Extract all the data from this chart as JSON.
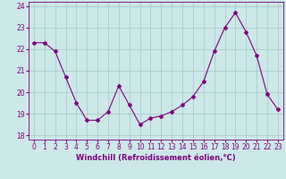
{
  "x": [
    0,
    1,
    2,
    3,
    4,
    5,
    6,
    7,
    8,
    9,
    10,
    11,
    12,
    13,
    14,
    15,
    16,
    17,
    18,
    19,
    20,
    21,
    22,
    23
  ],
  "y": [
    22.3,
    22.3,
    21.9,
    20.7,
    19.5,
    18.7,
    18.7,
    19.1,
    20.3,
    19.4,
    18.5,
    18.8,
    18.9,
    19.1,
    19.4,
    19.8,
    20.5,
    21.9,
    23.0,
    23.7,
    22.8,
    21.7,
    19.9,
    19.2
  ],
  "line_color": "#800080",
  "marker": "D",
  "marker_size": 2.0,
  "bg_color": "#cce8e8",
  "grid_color": "#aacccc",
  "xlabel": "Windchill (Refroidissement éolien,°C)",
  "xlabel_fontsize": 6.0,
  "xtick_labels": [
    "0",
    "1",
    "2",
    "3",
    "4",
    "5",
    "6",
    "7",
    "8",
    "9",
    "10",
    "11",
    "12",
    "13",
    "14",
    "15",
    "16",
    "17",
    "18",
    "19",
    "20",
    "21",
    "22",
    "23"
  ],
  "yticks": [
    18,
    19,
    20,
    21,
    22,
    23,
    24
  ],
  "ylim": [
    17.8,
    24.2
  ],
  "xlim": [
    -0.5,
    23.5
  ],
  "tick_fontsize": 5.5,
  "tick_color": "#800080"
}
